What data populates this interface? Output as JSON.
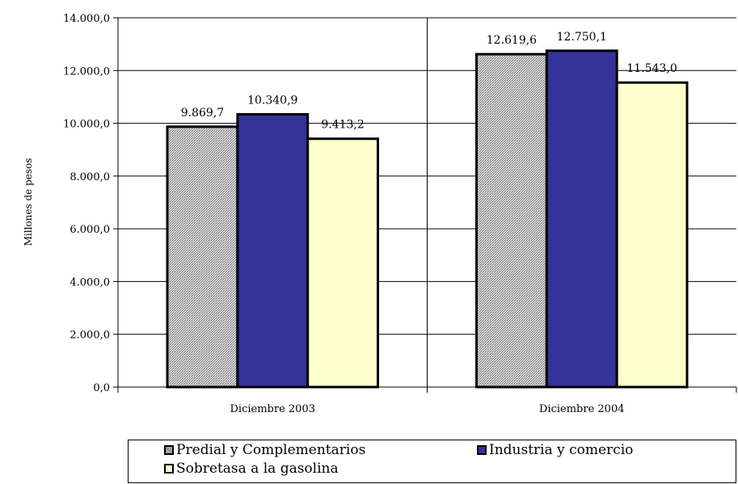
{
  "chart_data": {
    "type": "bar",
    "categories": [
      "Diciembre 2003",
      "Diciembre 2004"
    ],
    "series": [
      {
        "name": "Predial y Complementarios",
        "values": [
          9869.7,
          12619.6
        ],
        "labels": [
          "9.869,7",
          "12.619,6"
        ],
        "color": "#b4b4b4",
        "pattern": "dotted-gray"
      },
      {
        "name": "Industria y comercio",
        "values": [
          10340.9,
          12750.1
        ],
        "labels": [
          "10.340,9",
          "12.750,1"
        ],
        "color": "#333399"
      },
      {
        "name": "Sobretasa a la gasolina",
        "values": [
          9413.2,
          11543.0
        ],
        "labels": [
          "9.413,2",
          "11.543,0"
        ],
        "color": "#ffffcc"
      }
    ],
    "ylabel": "Millones de pesos",
    "ylim": [
      0,
      14000
    ],
    "yticks": [
      0,
      2000,
      4000,
      6000,
      8000,
      10000,
      12000,
      14000
    ],
    "ytick_labels": [
      "0,0",
      "2.000,0",
      "4.000,0",
      "6.000,0",
      "8.000,0",
      "10.000,0",
      "12.000,0",
      "14.000,0"
    ],
    "grid": true,
    "legend_position": "bottom"
  }
}
